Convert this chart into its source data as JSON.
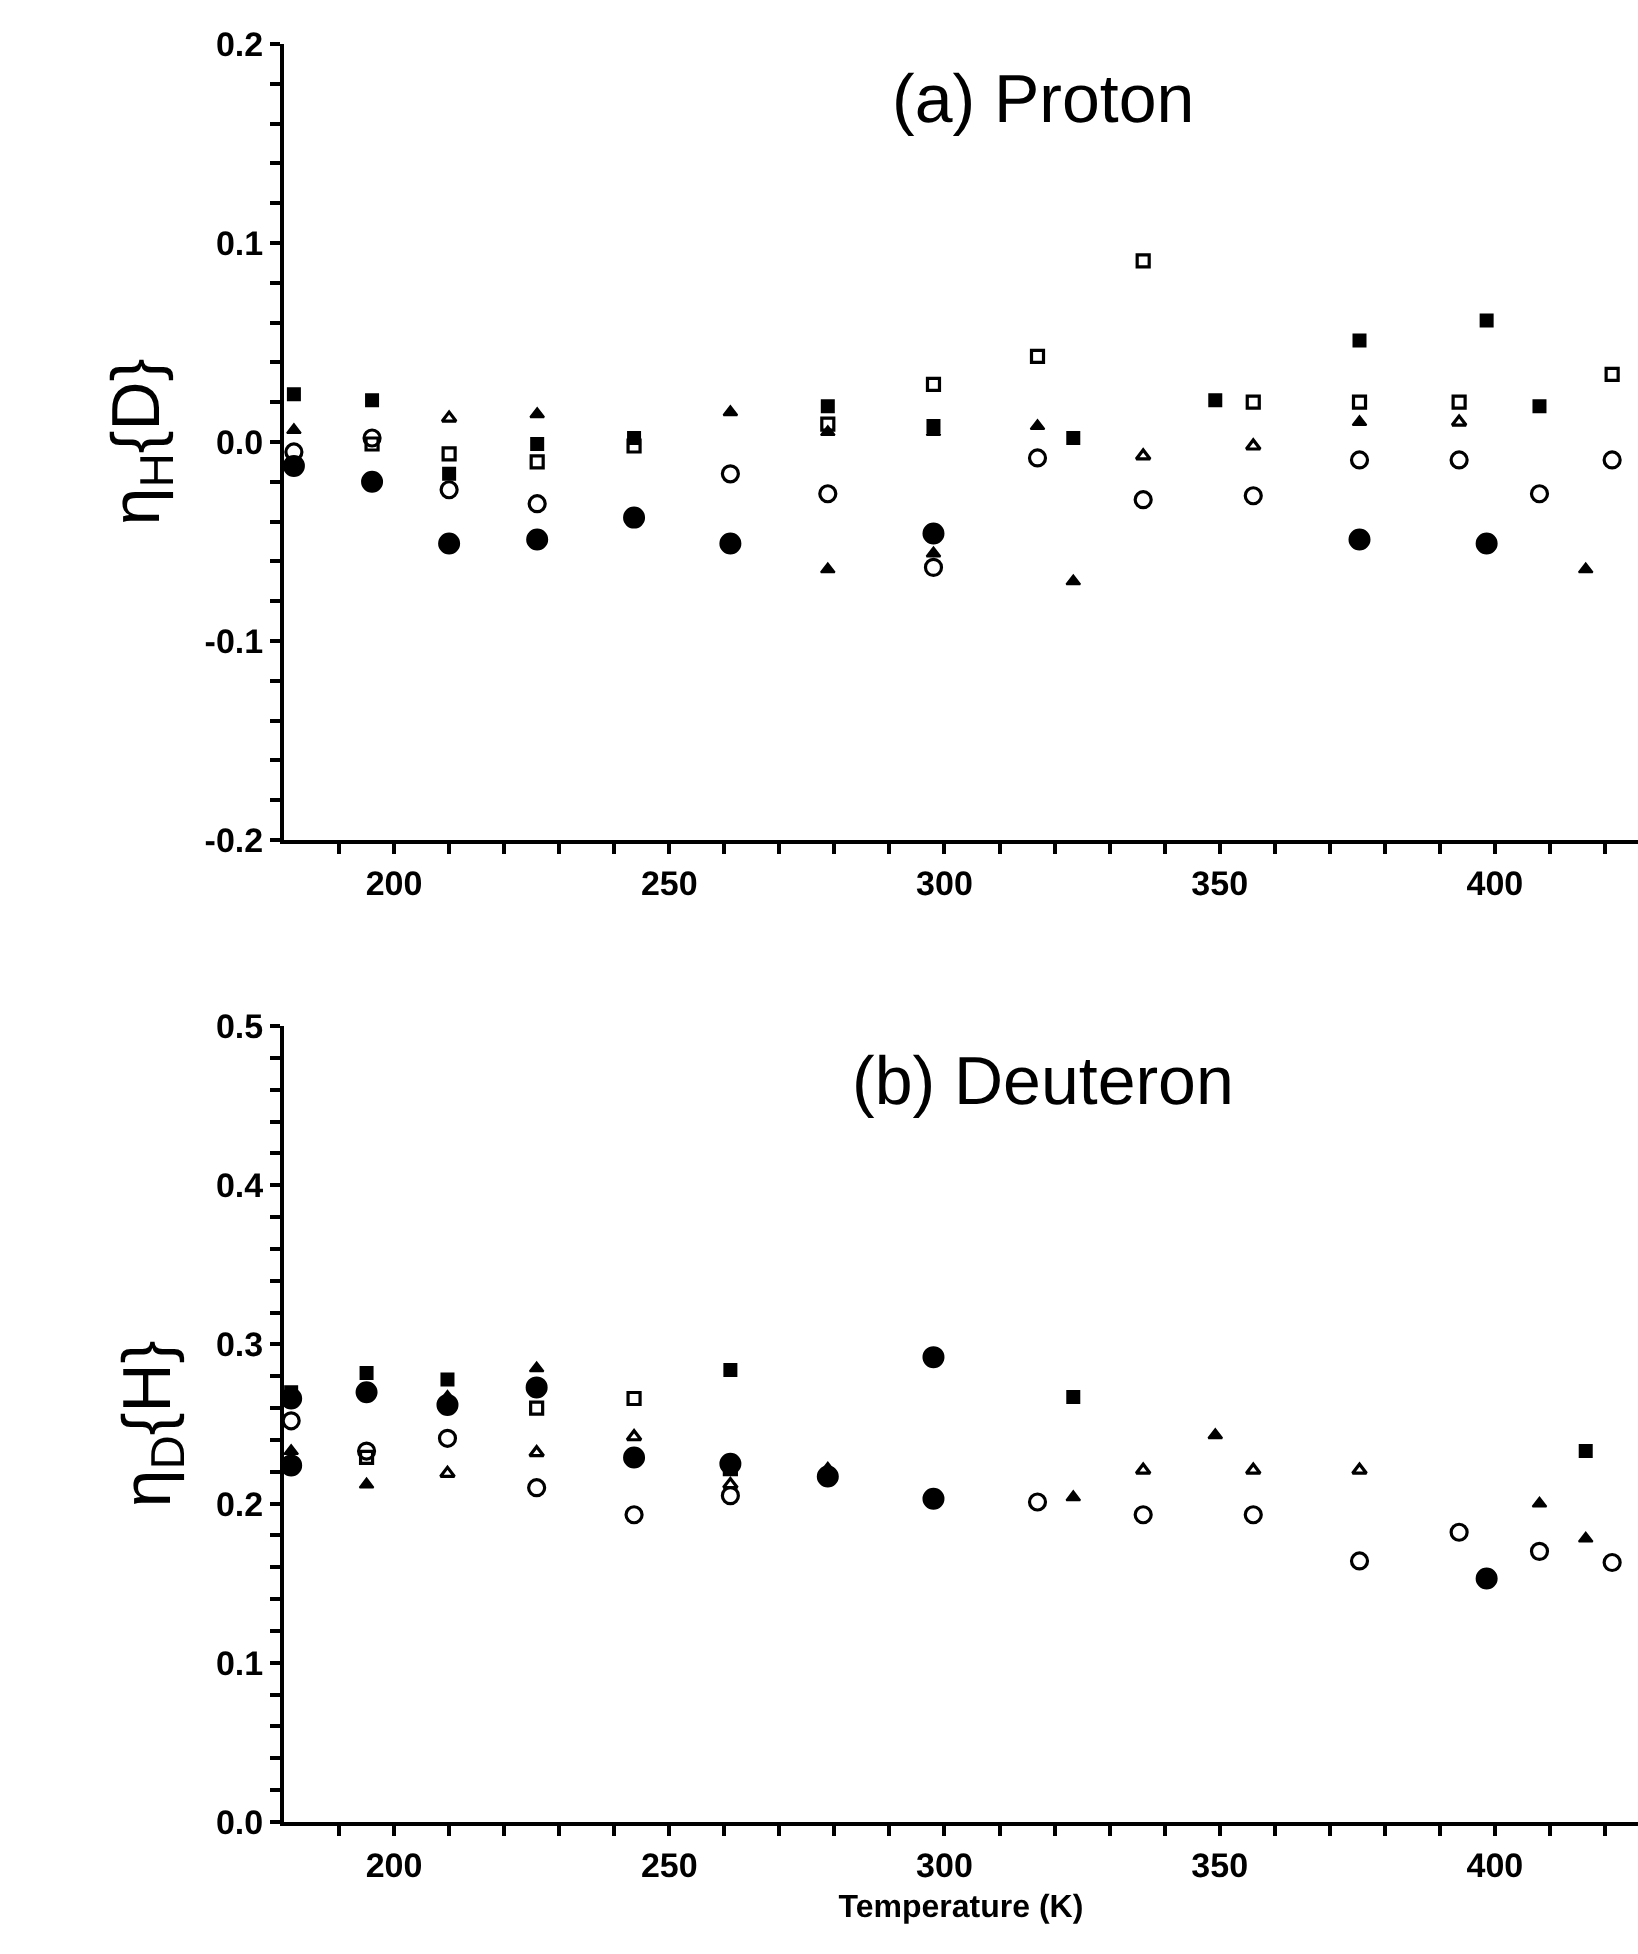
{
  "chart_data": [
    {
      "type": "scatter",
      "title": "(a) Proton",
      "ylabel": "η$_{H}${D}",
      "xlim": [
        180,
        426
      ],
      "ylim": [
        -0.2,
        0.2
      ],
      "xticks": [
        {
          "value": 190,
          "label": null
        },
        200,
        {
          "value": 210,
          "label": null
        },
        {
          "value": 220,
          "label": null
        },
        {
          "value": 230,
          "label": null
        },
        {
          "value": 240,
          "label": null
        },
        250,
        {
          "value": 260,
          "label": null
        },
        {
          "value": 270,
          "label": null
        },
        {
          "value": 280,
          "label": null
        },
        {
          "value": 290,
          "label": null
        },
        300,
        {
          "value": 310,
          "label": null
        },
        {
          "value": 320,
          "label": null
        },
        {
          "value": 330,
          "label": null
        },
        {
          "value": 340,
          "label": null
        },
        350,
        {
          "value": 360,
          "label": null
        },
        {
          "value": 370,
          "label": null
        },
        {
          "value": 380,
          "label": null
        },
        {
          "value": 390,
          "label": null
        },
        400,
        {
          "value": 410,
          "label": null
        },
        {
          "value": 420,
          "label": null
        }
      ],
      "yticks": [
        {
          "value": -0.2,
          "label": "-0.2"
        },
        {
          "value": -0.18,
          "label": null
        },
        {
          "value": -0.16,
          "label": null
        },
        {
          "value": -0.14,
          "label": null
        },
        {
          "value": -0.12,
          "label": null
        },
        {
          "value": -0.1,
          "label": "-0.1"
        },
        {
          "value": -0.08,
          "label": null
        },
        {
          "value": -0.06,
          "label": null
        },
        {
          "value": -0.04,
          "label": null
        },
        {
          "value": -0.02,
          "label": null
        },
        {
          "value": 0,
          "label": "0.0"
        },
        {
          "value": 0.02,
          "label": null
        },
        {
          "value": 0.04,
          "label": null
        },
        {
          "value": 0.06,
          "label": null
        },
        {
          "value": 0.08,
          "label": null
        },
        {
          "value": 0.1,
          "label": "0.1"
        },
        {
          "value": 0.12,
          "label": null
        },
        {
          "value": 0.14,
          "label": null
        },
        {
          "value": 0.16,
          "label": null
        },
        {
          "value": 0.18,
          "label": null
        },
        {
          "value": 0.2,
          "label": "0.2"
        }
      ],
      "series": [
        {
          "marker": "circle",
          "color": "#000000",
          "x": [
            181.8,
            196,
            210,
            226,
            243.6,
            261.1,
            298,
            375.4,
            398.5
          ],
          "values": [
            -0.012,
            -0.02,
            -0.051,
            -0.049,
            -0.038,
            -0.051,
            -0.046,
            -0.049,
            -0.051
          ]
        },
        {
          "marker": "square",
          "color": "#000000",
          "x": [
            181.8,
            196,
            210,
            226,
            243.6,
            278.8,
            298,
            323.4,
            349.2,
            375.4,
            398.5,
            408.1
          ],
          "values": [
            0.024,
            0.021,
            -0.016,
            -0.001,
            0.002,
            0.018,
            0.008,
            0.002,
            0.021,
            0.051,
            0.061,
            0.018
          ]
        },
        {
          "marker": "square-open",
          "color": "#000000",
          "x": [
            196,
            210,
            226,
            243.6,
            278.8,
            298,
            316.9,
            336.1,
            356.1,
            375.4,
            393.5,
            421.3
          ],
          "values": [
            -0.001,
            -0.006,
            -0.01,
            -0.002,
            0.009,
            0.029,
            0.043,
            0.091,
            0.02,
            0.02,
            0.02,
            0.034
          ]
        },
        {
          "marker": "triangle",
          "color": "#000000",
          "x": [
            181.8,
            226,
            261.1,
            278.8,
            298,
            316.9,
            375.4,
            278.8,
            298,
            323.4,
            416.5
          ],
          "values": [
            0.006,
            0.014,
            0.015,
            0.005,
            0.005,
            0.008,
            0.01,
            -0.064,
            -0.056,
            -0.07,
            -0.064
          ]
        },
        {
          "marker": "triangle-open",
          "color": "#000000",
          "x": [
            210,
            336.1,
            356.1,
            393.5
          ],
          "values": [
            0.012,
            -0.007,
            -0.002,
            0.01
          ]
        },
        {
          "marker": "circle-open",
          "color": "#000000",
          "x": [
            181.8,
            196,
            210,
            226,
            261.1,
            278.8,
            298,
            316.9,
            336.1,
            356.1,
            375.4,
            393.5,
            408.1,
            421.3
          ],
          "values": [
            -0.005,
            0.002,
            -0.024,
            -0.031,
            -0.016,
            -0.026,
            -0.063,
            -0.008,
            -0.029,
            -0.027,
            -0.009,
            -0.009,
            -0.026,
            -0.009
          ]
        }
      ]
    },
    {
      "type": "scatter",
      "title": "(b) Deuteron",
      "xlabel": "Temperature (K)",
      "ylabel": "η$_{D}${H}",
      "xlim": [
        180,
        426
      ],
      "ylim": [
        0,
        0.5
      ],
      "xticks": [
        {
          "value": 190,
          "label": null
        },
        200,
        {
          "value": 210,
          "label": null
        },
        {
          "value": 220,
          "label": null
        },
        {
          "value": 230,
          "label": null
        },
        {
          "value": 240,
          "label": null
        },
        250,
        {
          "value": 260,
          "label": null
        },
        {
          "value": 270,
          "label": null
        },
        {
          "value": 280,
          "label": null
        },
        {
          "value": 290,
          "label": null
        },
        300,
        {
          "value": 310,
          "label": null
        },
        {
          "value": 320,
          "label": null
        },
        {
          "value": 330,
          "label": null
        },
        {
          "value": 340,
          "label": null
        },
        350,
        {
          "value": 360,
          "label": null
        },
        {
          "value": 370,
          "label": null
        },
        {
          "value": 380,
          "label": null
        },
        {
          "value": 390,
          "label": null
        },
        400,
        {
          "value": 410,
          "label": null
        },
        {
          "value": 420,
          "label": null
        }
      ],
      "yticks": [
        {
          "value": 0,
          "label": "0.0"
        },
        {
          "value": 0.02,
          "label": null
        },
        {
          "value": 0.04,
          "label": null
        },
        {
          "value": 0.06,
          "label": null
        },
        {
          "value": 0.08,
          "label": null
        },
        {
          "value": 0.1,
          "label": "0.1"
        },
        {
          "value": 0.12,
          "label": null
        },
        {
          "value": 0.14,
          "label": null
        },
        {
          "value": 0.16,
          "label": null
        },
        {
          "value": 0.18,
          "label": null
        },
        {
          "value": 0.2,
          "label": "0.2"
        },
        {
          "value": 0.22,
          "label": null
        },
        {
          "value": 0.24,
          "label": null
        },
        {
          "value": 0.26,
          "label": null
        },
        {
          "value": 0.28,
          "label": null
        },
        {
          "value": 0.3,
          "label": "0.3"
        },
        {
          "value": 0.32,
          "label": null
        },
        {
          "value": 0.34,
          "label": null
        },
        {
          "value": 0.36,
          "label": null
        },
        {
          "value": 0.38,
          "label": null
        },
        {
          "value": 0.4,
          "label": "0.4"
        },
        {
          "value": 0.42,
          "label": null
        },
        {
          "value": 0.44,
          "label": null
        },
        {
          "value": 0.46,
          "label": null
        },
        {
          "value": 0.48,
          "label": null
        },
        {
          "value": 0.5,
          "label": "0.5"
        }
      ],
      "series": [
        {
          "marker": "circle",
          "color": "#000000",
          "x": [
            181.3,
            181.3,
            195,
            209.7,
            225.9,
            243.6,
            261.1,
            278.8,
            298,
            298,
            398.5
          ],
          "values": [
            0.266,
            0.224,
            0.27,
            0.262,
            0.273,
            0.229,
            0.225,
            0.217,
            0.292,
            0.203,
            0.153
          ]
        },
        {
          "marker": "square",
          "color": "#000000",
          "x": [
            181.3,
            195,
            209.7,
            261.1,
            323.4,
            416.5
          ],
          "values": [
            0.27,
            0.282,
            0.278,
            0.284,
            0.267,
            0.233
          ]
        },
        {
          "marker": "square-open",
          "color": "#000000",
          "x": [
            195,
            225.9,
            243.6,
            261.1
          ],
          "values": [
            0.229,
            0.26,
            0.266,
            0.222
          ]
        },
        {
          "marker": "triangle",
          "color": "#000000",
          "x": [
            181.3,
            195,
            209.7,
            225.9,
            278.8,
            323.4,
            349.2,
            408.1,
            416.5
          ],
          "values": [
            0.233,
            0.212,
            0.267,
            0.285,
            0.222,
            0.204,
            0.243,
            0.2,
            0.178
          ]
        },
        {
          "marker": "triangle-open",
          "color": "#000000",
          "x": [
            209.7,
            225.9,
            243.6,
            261.1,
            336.1,
            356.1,
            375.4
          ],
          "values": [
            0.219,
            0.232,
            0.242,
            0.212,
            0.221,
            0.221,
            0.221
          ]
        },
        {
          "marker": "circle-open",
          "color": "#000000",
          "x": [
            181.3,
            195,
            209.7,
            225.9,
            243.6,
            261.1,
            316.9,
            336.1,
            356.1,
            375.4,
            393.5,
            408.1,
            421.3
          ],
          "values": [
            0.252,
            0.233,
            0.241,
            0.21,
            0.193,
            0.205,
            0.201,
            0.193,
            0.193,
            0.164,
            0.182,
            0.17,
            0.163
          ]
        }
      ]
    }
  ]
}
